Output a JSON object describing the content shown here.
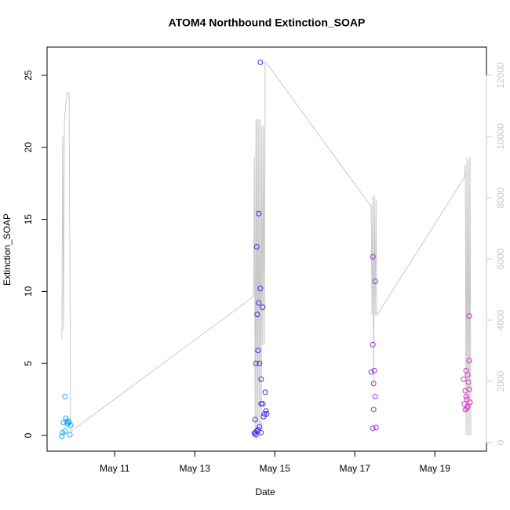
{
  "chart_data": {
    "type": "scatter",
    "title": "ATOM4 Northbound Extinction_SOAP",
    "x_label": "Date",
    "y_label": "Extinction_SOAP",
    "xlim": [
      9.31,
      20.29
    ],
    "xticks": [
      {
        "value": 11,
        "label": "May 11"
      },
      {
        "value": 13,
        "label": "May 13"
      },
      {
        "value": 15,
        "label": "May 15"
      },
      {
        "value": 17,
        "label": "May 17"
      },
      {
        "value": 19,
        "label": "May 19"
      }
    ],
    "ylim": [
      -1.09,
      26.96
    ],
    "yticks": [
      0,
      5,
      10,
      15,
      20,
      25
    ],
    "y2lim": [
      -282,
      12923
    ],
    "y2ticks": [
      0,
      2000,
      4000,
      6000,
      8000,
      10000,
      12000
    ],
    "series": [
      {
        "color": "#1fa8f0",
        "x": [
          9.76,
          9.72,
          9.78,
          9.84,
          9.82,
          9.86,
          9.9,
          9.76,
          9.7,
          9.88,
          9.68,
          9.8
        ],
        "values": [
          2.7,
          0.9,
          1.2,
          1.0,
          0.8,
          0.9,
          0.7,
          0.3,
          0.2,
          0.05,
          -0.05,
          0.95
        ]
      },
      {
        "color": "#4a2be0",
        "x": [
          14.64,
          14.6,
          14.55,
          14.64,
          14.6,
          14.7,
          14.56,
          14.58,
          14.53,
          14.62,
          14.66,
          14.76,
          14.7,
          14.66,
          14.78,
          14.74,
          14.8,
          14.72,
          14.51,
          14.62,
          14.58,
          14.55,
          14.66,
          14.49,
          14.53,
          14.51
        ],
        "values": [
          25.9,
          15.4,
          13.1,
          10.2,
          9.2,
          8.9,
          8.4,
          5.9,
          5.0,
          5.0,
          3.9,
          3.0,
          2.2,
          2.2,
          1.7,
          1.5,
          1.5,
          1.3,
          1.1,
          0.6,
          0.4,
          0.3,
          0.2,
          0.15,
          0.05,
          0.2
        ]
      },
      {
        "color": "#9a2fe0",
        "x": [
          17.45,
          17.51,
          17.45,
          17.49,
          17.41,
          17.47,
          17.51,
          17.47,
          17.45,
          17.53
        ],
        "values": [
          12.4,
          10.7,
          6.3,
          4.5,
          4.4,
          3.6,
          2.7,
          1.8,
          0.5,
          0.55
        ]
      },
      {
        "color": "#d835c8",
        "x": [
          19.86,
          19.86,
          19.78,
          19.82,
          19.72,
          19.84,
          19.76,
          19.86,
          19.78,
          19.8,
          19.88,
          19.74,
          19.82,
          19.76,
          19.8
        ],
        "values": [
          8.3,
          5.2,
          4.5,
          4.2,
          3.9,
          3.7,
          3.1,
          3.2,
          2.7,
          2.5,
          2.3,
          2.2,
          2.0,
          1.8,
          1.9
        ]
      },
      {
        "color": "#c8c8c8",
        "axis": "y2",
        "style": "line",
        "x": [
          9.68,
          9.7,
          9.72,
          9.74,
          9.78,
          9.82,
          9.86,
          9.9,
          14.47,
          14.49,
          14.51,
          14.53,
          14.55,
          14.56,
          14.58,
          14.6,
          14.62,
          14.64,
          14.66,
          14.68,
          14.7,
          14.72,
          14.74,
          14.76,
          17.39,
          17.41,
          17.43,
          17.45,
          17.47,
          17.49,
          17.51,
          17.53,
          17.55,
          19.74,
          19.76,
          19.78,
          19.8,
          19.82,
          19.84,
          19.86,
          19.88,
          19.9
        ],
        "values": [
          3385,
          10026,
          3692,
          10359,
          11128,
          11436,
          11436,
          359,
          4769,
          9333,
          231,
          10564,
          103,
          10564,
          231,
          10564,
          103,
          10564,
          231,
          10359,
          3179,
          10359,
          3179,
          12462,
          7744,
          7744,
          4205,
          8051,
          1897,
          8051,
          4154,
          7949,
          4154,
          8667,
          9077,
          231,
          9333,
          231,
          9231,
          231,
          9333,
          231
        ]
      }
    ]
  }
}
